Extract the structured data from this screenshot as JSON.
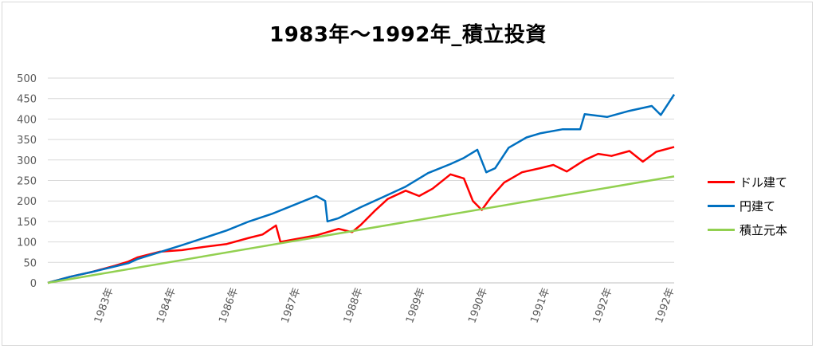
{
  "chart_data": {
    "type": "line",
    "title": "1983年～1992年_積立投資",
    "x_tick_labels": [
      "1983年",
      "1984年",
      "1986年",
      "1987年",
      "1988年",
      "1989年",
      "1990年",
      "1991年",
      "1992年",
      "1992年"
    ],
    "ylim": [
      0,
      500
    ],
    "y_ticks": [
      "0",
      "50",
      "100",
      "150",
      "200",
      "250",
      "300",
      "350",
      "400",
      "450",
      "500"
    ],
    "grid": true,
    "legend_position": "right",
    "series": [
      {
        "name": "ドル建て",
        "color": "#ff0000",
        "points": [
          [
            0,
            0
          ],
          [
            0.5,
            15
          ],
          [
            1,
            27
          ],
          [
            1.5,
            42
          ],
          [
            1.8,
            52
          ],
          [
            2,
            62
          ],
          [
            2.5,
            76
          ],
          [
            3,
            80
          ],
          [
            3.5,
            88
          ],
          [
            4,
            95
          ],
          [
            4.5,
            110
          ],
          [
            4.8,
            118
          ],
          [
            5.1,
            140
          ],
          [
            5.2,
            100
          ],
          [
            5.5,
            106
          ],
          [
            6,
            116
          ],
          [
            6.5,
            132
          ],
          [
            6.8,
            124
          ],
          [
            7,
            142
          ],
          [
            7.3,
            175
          ],
          [
            7.6,
            205
          ],
          [
            8,
            225
          ],
          [
            8.3,
            212
          ],
          [
            8.6,
            230
          ],
          [
            9,
            265
          ],
          [
            9.3,
            255
          ],
          [
            9.5,
            200
          ],
          [
            9.7,
            178
          ],
          [
            9.9,
            208
          ],
          [
            10.2,
            245
          ],
          [
            10.6,
            270
          ],
          [
            11,
            280
          ],
          [
            11.3,
            288
          ],
          [
            11.6,
            272
          ],
          [
            12,
            300
          ],
          [
            12.3,
            315
          ],
          [
            12.6,
            310
          ],
          [
            13,
            322
          ],
          [
            13.3,
            296
          ],
          [
            13.6,
            320
          ],
          [
            14,
            332
          ]
        ]
      },
      {
        "name": "円建て",
        "color": "#0070c0",
        "points": [
          [
            0,
            0
          ],
          [
            0.5,
            15
          ],
          [
            1,
            27
          ],
          [
            1.5,
            40
          ],
          [
            1.8,
            48
          ],
          [
            2,
            58
          ],
          [
            2.5,
            75
          ],
          [
            3,
            92
          ],
          [
            3.5,
            110
          ],
          [
            4,
            128
          ],
          [
            4.5,
            150
          ],
          [
            5,
            168
          ],
          [
            5.5,
            190
          ],
          [
            6,
            212
          ],
          [
            6.2,
            200
          ],
          [
            6.25,
            150
          ],
          [
            6.5,
            158
          ],
          [
            7,
            185
          ],
          [
            7.5,
            210
          ],
          [
            8,
            235
          ],
          [
            8.5,
            268
          ],
          [
            9,
            290
          ],
          [
            9.3,
            305
          ],
          [
            9.6,
            325
          ],
          [
            9.8,
            270
          ],
          [
            10,
            280
          ],
          [
            10.3,
            330
          ],
          [
            10.7,
            355
          ],
          [
            11,
            365
          ],
          [
            11.5,
            375
          ],
          [
            11.9,
            375
          ],
          [
            12,
            412
          ],
          [
            12.5,
            405
          ],
          [
            13,
            420
          ],
          [
            13.5,
            432
          ],
          [
            13.7,
            410
          ],
          [
            14,
            460
          ]
        ]
      },
      {
        "name": "積立元本",
        "color": "#92d050",
        "points": [
          [
            0,
            0
          ],
          [
            14,
            260
          ]
        ]
      }
    ]
  }
}
